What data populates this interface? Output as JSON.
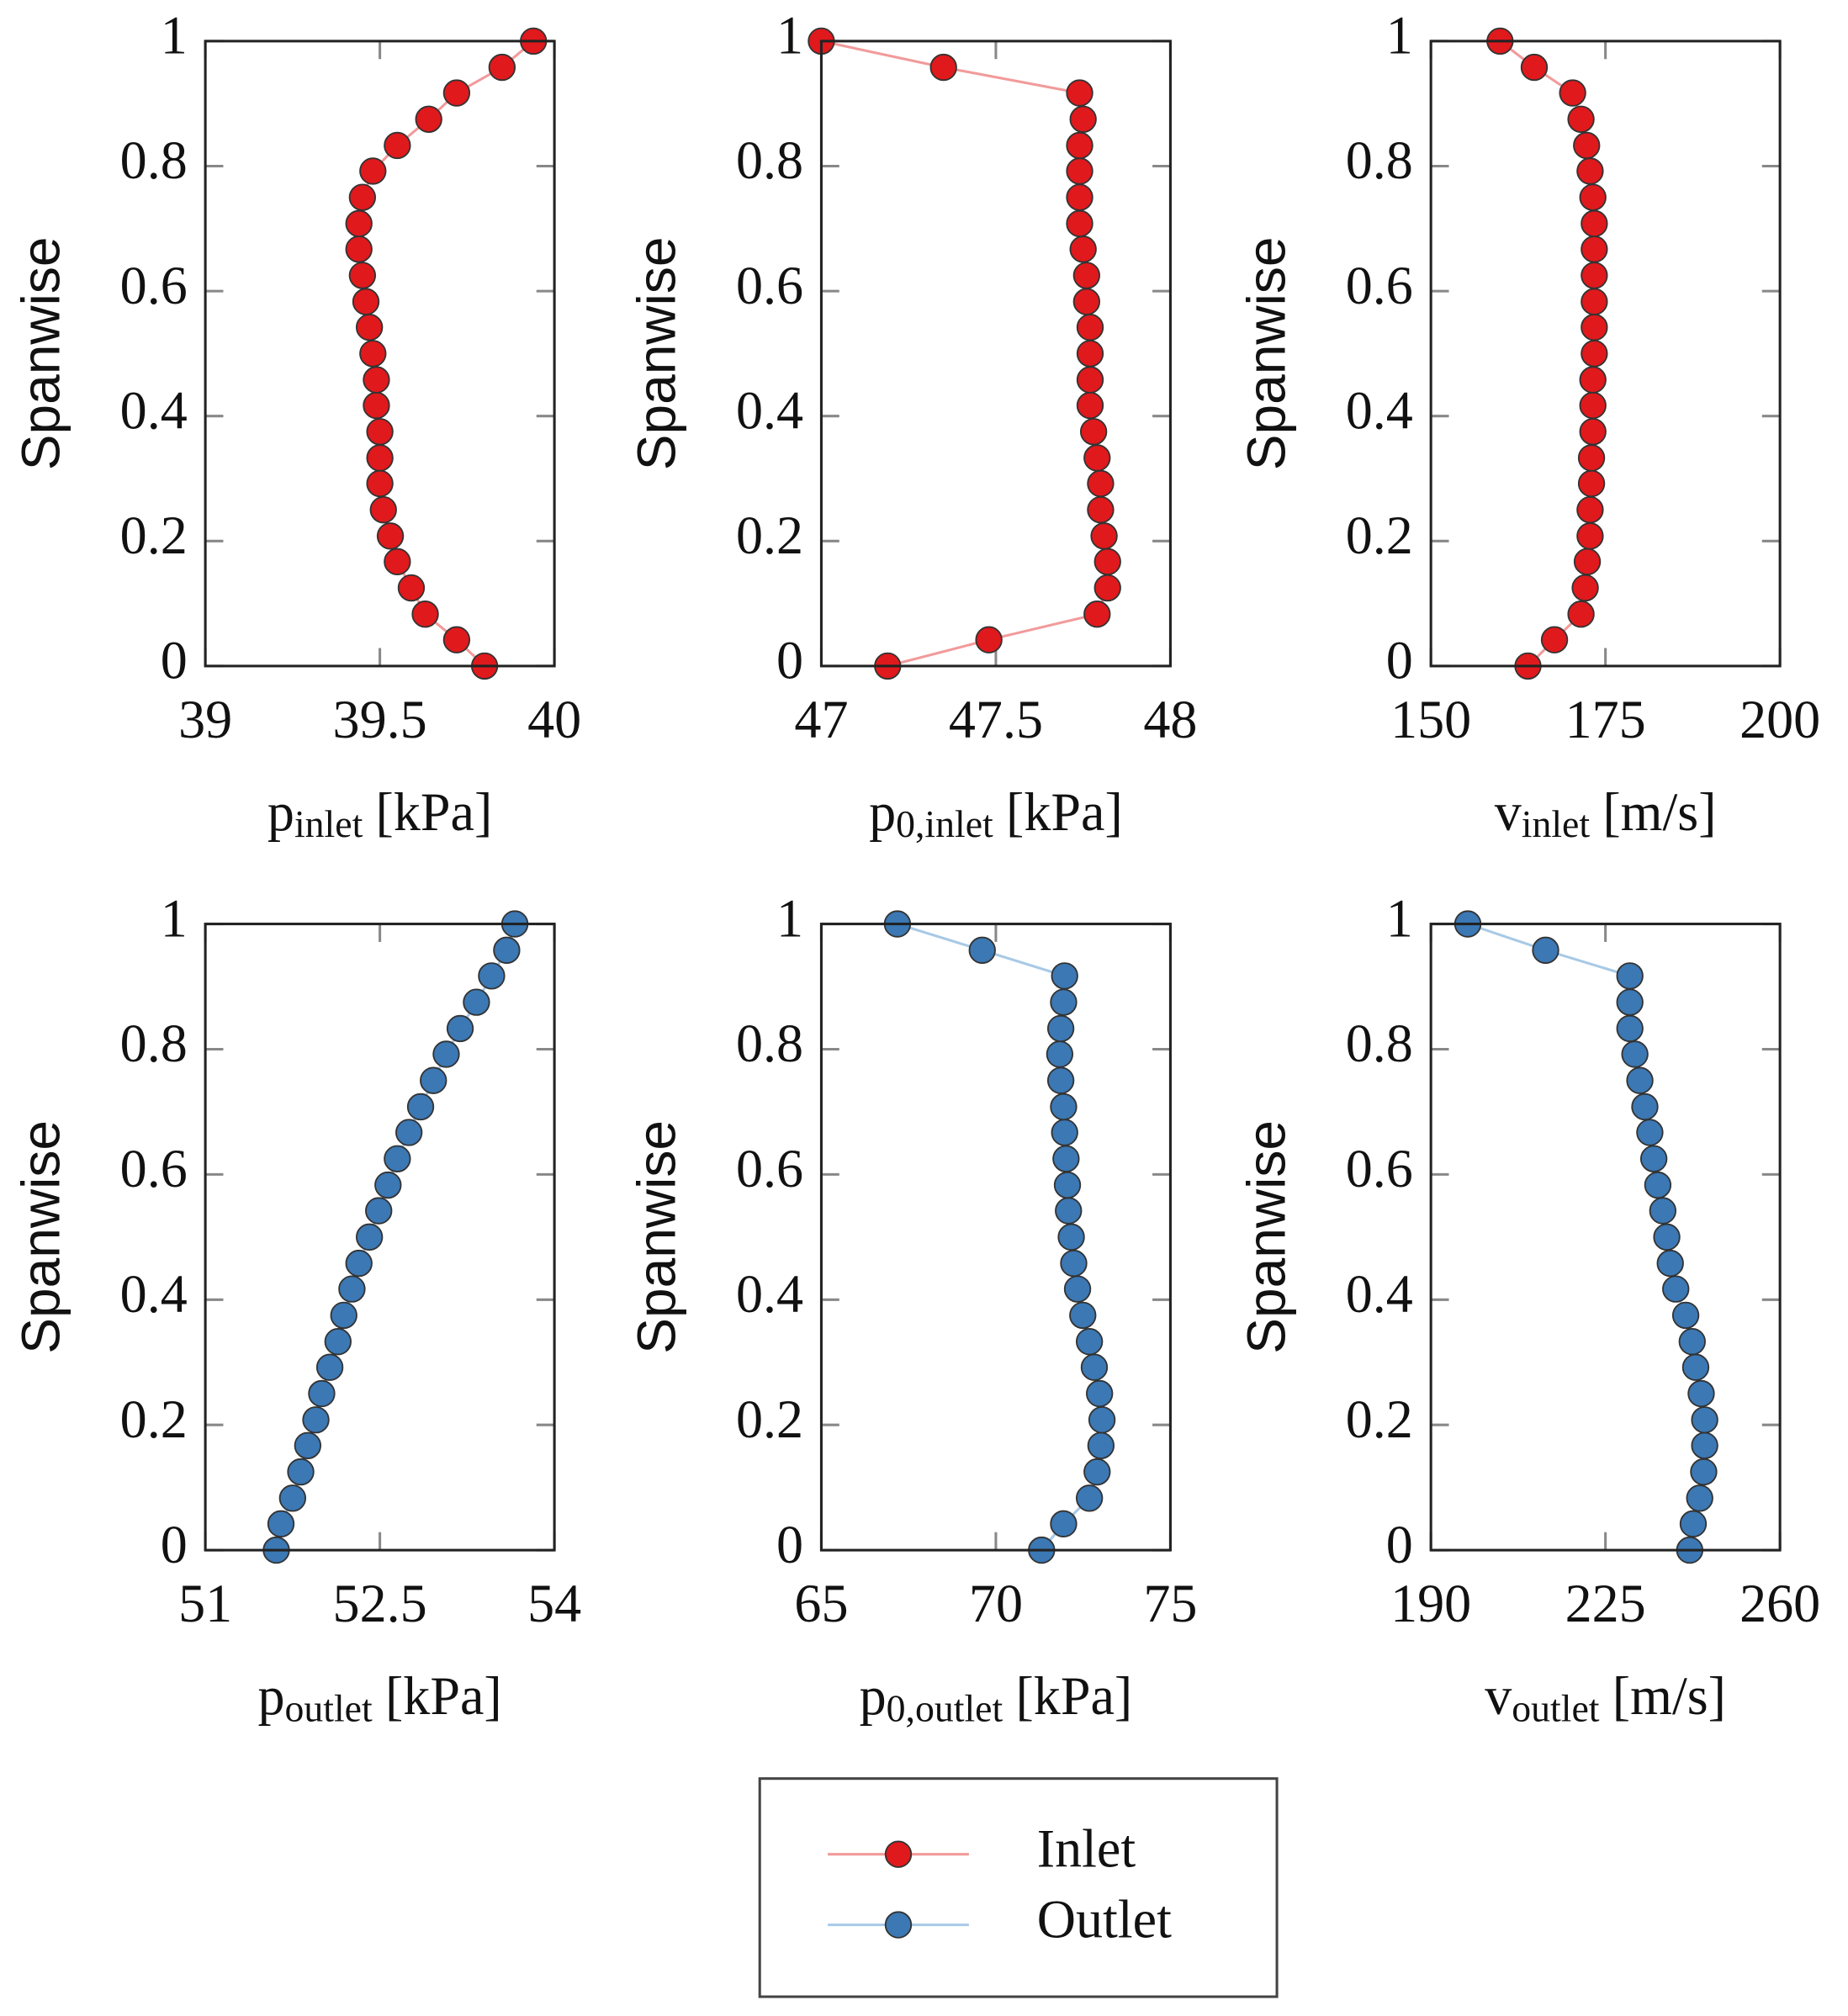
{
  "chart_data": [
    {
      "type": "line",
      "ylabel": "Spanwise",
      "xlabel": {
        "symbol": "p",
        "subscript": "inlet",
        "unit": "[kPa]"
      },
      "xlim": [
        39,
        40
      ],
      "xticks": [
        39,
        39.5,
        40
      ],
      "ylim": [
        0,
        1
      ],
      "yticks": [
        0,
        0.2,
        0.4,
        0.6,
        0.8,
        1
      ],
      "series": [
        {
          "name": "Inlet",
          "color": "#e0191c",
          "line_color": "#f29a9a",
          "x": [
            39.8,
            39.72,
            39.63,
            39.59,
            39.55,
            39.53,
            39.51,
            39.5,
            39.5,
            39.5,
            39.49,
            39.49,
            39.48,
            39.47,
            39.46,
            39.45,
            39.44,
            39.44,
            39.45,
            39.48,
            39.55,
            39.64,
            39.72,
            39.85,
            39.94
          ],
          "y": [
            0,
            0.042,
            0.083,
            0.125,
            0.167,
            0.208,
            0.25,
            0.292,
            0.333,
            0.375,
            0.417,
            0.458,
            0.5,
            0.542,
            0.583,
            0.625,
            0.667,
            0.708,
            0.75,
            0.792,
            0.833,
            0.875,
            0.917,
            0.958,
            1
          ]
        }
      ]
    },
    {
      "type": "line",
      "ylabel": "Spanwise",
      "xlabel": {
        "symbol": "p",
        "subscript": "0,inlet",
        "unit": "[kPa]"
      },
      "xlim": [
        47,
        48
      ],
      "xticks": [
        47,
        47.5,
        48
      ],
      "ylim": [
        0,
        1
      ],
      "yticks": [
        0,
        0.2,
        0.4,
        0.6,
        0.8,
        1
      ],
      "series": [
        {
          "name": "Inlet",
          "color": "#e0191c",
          "line_color": "#f29a9a",
          "x": [
            47.19,
            47.48,
            47.79,
            47.82,
            47.82,
            47.81,
            47.8,
            47.8,
            47.79,
            47.78,
            47.77,
            47.77,
            47.77,
            47.77,
            47.76,
            47.76,
            47.75,
            47.74,
            47.74,
            47.74,
            47.74,
            47.75,
            47.74,
            47.35,
            47.0
          ],
          "y": [
            0,
            0.042,
            0.083,
            0.125,
            0.167,
            0.208,
            0.25,
            0.292,
            0.333,
            0.375,
            0.417,
            0.458,
            0.5,
            0.542,
            0.583,
            0.625,
            0.667,
            0.708,
            0.75,
            0.792,
            0.833,
            0.875,
            0.917,
            0.958,
            1
          ]
        }
      ]
    },
    {
      "type": "line",
      "ylabel": "Spanwise",
      "xlabel": {
        "symbol": "v",
        "subscript": "inlet",
        "unit": "[m/s]"
      },
      "xlim": [
        150,
        200
      ],
      "xticks": [
        150,
        175,
        200
      ],
      "ylim": [
        0,
        1
      ],
      "yticks": [
        0,
        0.2,
        0.4,
        0.6,
        0.8,
        1
      ],
      "series": [
        {
          "name": "Inlet",
          "color": "#e0191c",
          "line_color": "#f29a9a",
          "x": [
            163.9,
            167.7,
            171.5,
            172.1,
            172.4,
            172.8,
            172.8,
            173.0,
            173.0,
            173.2,
            173.2,
            173.2,
            173.4,
            173.4,
            173.4,
            173.4,
            173.4,
            173.4,
            173.2,
            172.8,
            172.3,
            171.5,
            170.3,
            164.8,
            159.9
          ],
          "y": [
            0,
            0.042,
            0.083,
            0.125,
            0.167,
            0.208,
            0.25,
            0.292,
            0.333,
            0.375,
            0.417,
            0.458,
            0.5,
            0.542,
            0.583,
            0.625,
            0.667,
            0.708,
            0.75,
            0.792,
            0.833,
            0.875,
            0.917,
            0.958,
            1
          ]
        }
      ]
    },
    {
      "type": "line",
      "ylabel": "Spanwise",
      "xlabel": {
        "symbol": "p",
        "subscript": "outlet",
        "unit": "[kPa]"
      },
      "xlim": [
        51,
        54
      ],
      "xticks": [
        51,
        52.5,
        54
      ],
      "ylim": [
        0,
        1
      ],
      "yticks": [
        0,
        0.2,
        0.4,
        0.6,
        0.8,
        1
      ],
      "series": [
        {
          "name": "Outlet",
          "color": "#3b78b4",
          "line_color": "#a8c9e6",
          "x": [
            51.61,
            51.65,
            51.75,
            51.82,
            51.88,
            51.95,
            52.0,
            52.07,
            52.14,
            52.19,
            52.26,
            52.32,
            52.41,
            52.49,
            52.57,
            52.65,
            52.75,
            52.85,
            52.96,
            53.07,
            53.19,
            53.33,
            53.46,
            53.59,
            53.66
          ],
          "y": [
            0,
            0.042,
            0.083,
            0.125,
            0.167,
            0.208,
            0.25,
            0.292,
            0.333,
            0.375,
            0.417,
            0.458,
            0.5,
            0.542,
            0.583,
            0.625,
            0.667,
            0.708,
            0.75,
            0.792,
            0.833,
            0.875,
            0.917,
            0.958,
            1
          ]
        }
      ]
    },
    {
      "type": "line",
      "ylabel": "Spanwise",
      "xlabel": {
        "symbol": "p",
        "subscript": "0,outlet",
        "unit": "[kPa]"
      },
      "xlim": [
        65,
        75
      ],
      "xticks": [
        65,
        70,
        75
      ],
      "ylim": [
        0,
        1
      ],
      "yticks": [
        0,
        0.2,
        0.4,
        0.6,
        0.8,
        1
      ],
      "series": [
        {
          "name": "Outlet",
          "color": "#3b78b4",
          "line_color": "#a8c9e6",
          "x": [
            71.31,
            71.94,
            72.68,
            72.9,
            73.01,
            73.04,
            72.97,
            72.82,
            72.68,
            72.49,
            72.34,
            72.23,
            72.16,
            72.08,
            72.05,
            72.01,
            71.97,
            71.94,
            71.86,
            71.83,
            71.86,
            71.94,
            71.97,
            69.61,
            67.18
          ],
          "y": [
            0,
            0.042,
            0.083,
            0.125,
            0.167,
            0.208,
            0.25,
            0.292,
            0.333,
            0.375,
            0.417,
            0.458,
            0.5,
            0.542,
            0.583,
            0.625,
            0.667,
            0.708,
            0.75,
            0.792,
            0.833,
            0.875,
            0.917,
            0.958,
            1
          ]
        }
      ]
    },
    {
      "type": "line",
      "ylabel": "Spanwise",
      "xlabel": {
        "symbol": "v",
        "subscript": "outlet",
        "unit": "[m/s]"
      },
      "xlim": [
        190,
        260
      ],
      "xticks": [
        190,
        225,
        260
      ],
      "ylim": [
        0,
        1
      ],
      "yticks": [
        0,
        0.2,
        0.4,
        0.6,
        0.8,
        1
      ],
      "series": [
        {
          "name": "Outlet",
          "color": "#3b78b4",
          "line_color": "#a8c9e6",
          "x": [
            241.9,
            242.6,
            243.9,
            244.7,
            244.9,
            244.9,
            244.2,
            243.1,
            242.4,
            241.1,
            239.1,
            238.0,
            237.3,
            236.5,
            235.5,
            234.7,
            233.9,
            232.9,
            231.9,
            230.9,
            229.9,
            229.9,
            229.9,
            213.0,
            197.4
          ],
          "y": [
            0,
            0.042,
            0.083,
            0.125,
            0.167,
            0.208,
            0.25,
            0.292,
            0.333,
            0.375,
            0.417,
            0.458,
            0.5,
            0.542,
            0.583,
            0.625,
            0.667,
            0.708,
            0.75,
            0.792,
            0.833,
            0.875,
            0.917,
            0.958,
            1
          ]
        }
      ]
    }
  ]
}
